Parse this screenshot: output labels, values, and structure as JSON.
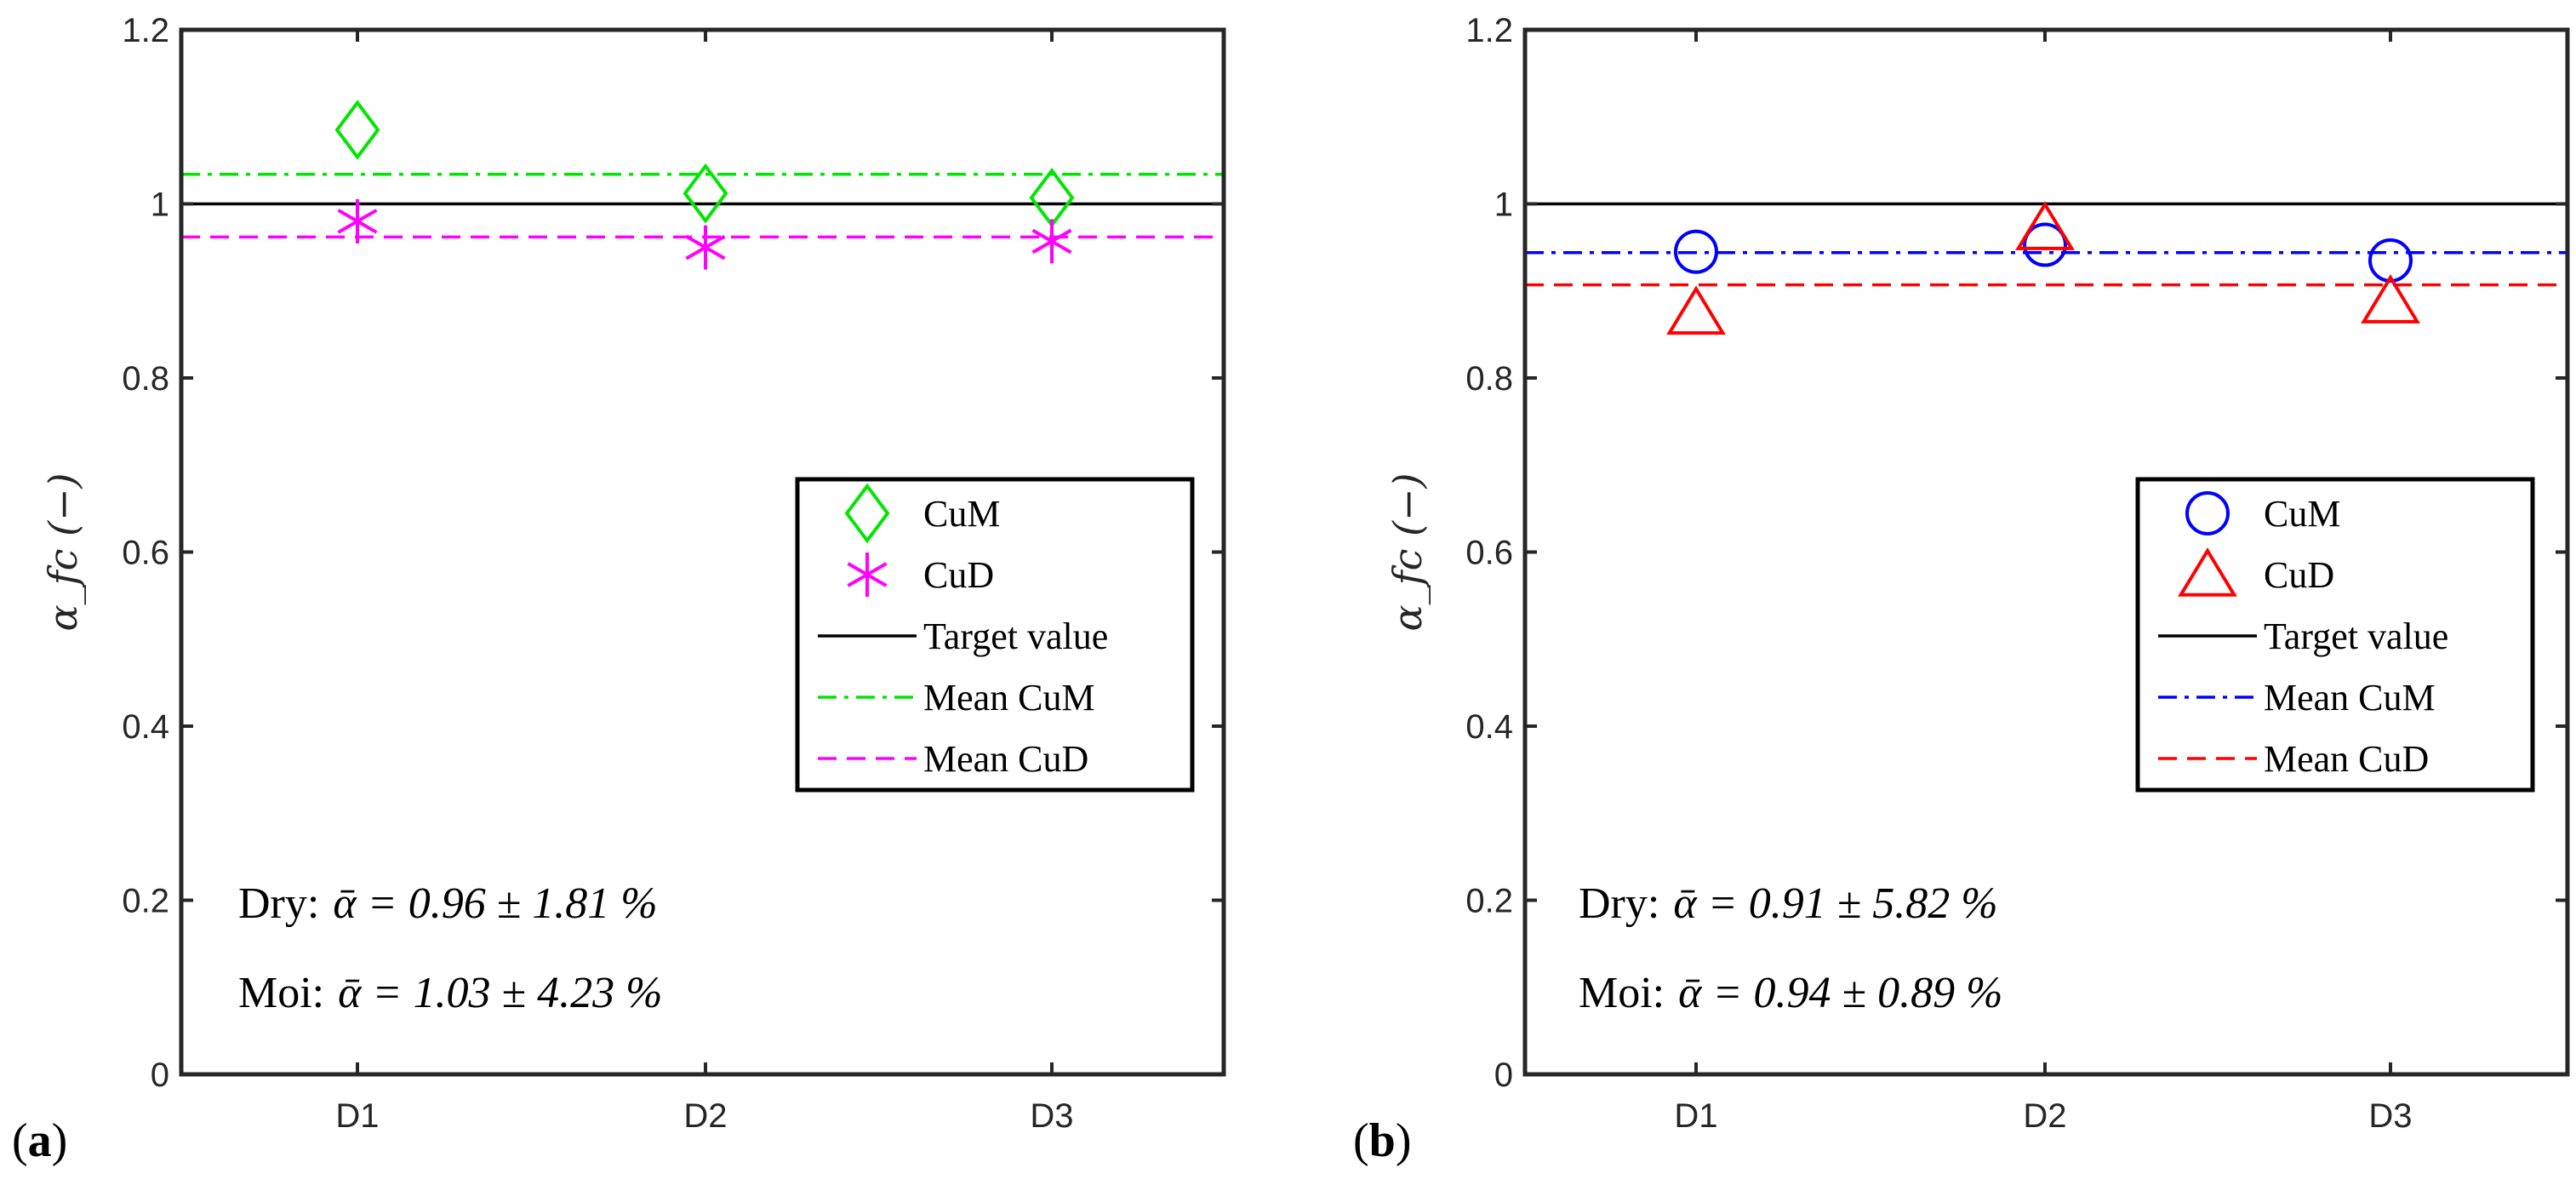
{
  "chart_data": [
    {
      "panel_label": "(a)",
      "type": "scatter",
      "categories": [
        "D1",
        "D2",
        "D3"
      ],
      "ylabel": "α_fc (−)",
      "ylim": [
        0,
        1.2
      ],
      "yticks": [
        "0",
        "0.2",
        "0.4",
        "0.6",
        "0.8",
        "1",
        "1.2"
      ],
      "grid": false,
      "legend_position": "center-right",
      "series": [
        {
          "name": "CuM",
          "values": [
            1.085,
            1.012,
            1.007
          ],
          "marker": "diamond",
          "color": "#00e600"
        },
        {
          "name": "CuD",
          "values": [
            0.98,
            0.95,
            0.957
          ],
          "marker": "asterisk",
          "color": "#ff00ff"
        }
      ],
      "lines": [
        {
          "name": "Target value",
          "value": 1.0,
          "style": "solid",
          "color": "#000000"
        },
        {
          "name": "Mean CuM",
          "value": 1.034,
          "style": "dashdot",
          "color": "#00e600"
        },
        {
          "name": "Mean CuD",
          "value": 0.962,
          "style": "dashed",
          "color": "#ff00ff"
        }
      ],
      "annotations": [
        {
          "prefix": "Dry:",
          "expr": "ᾱ = 0.96 ± 1.81 %"
        },
        {
          "prefix": "Moi:",
          "expr": "ᾱ = 1.03 ± 4.23 %"
        }
      ]
    },
    {
      "panel_label": "(b)",
      "type": "scatter",
      "categories": [
        "D1",
        "D2",
        "D3"
      ],
      "ylabel": "α_fc (−)",
      "ylim": [
        0,
        1.2
      ],
      "yticks": [
        "0",
        "0.2",
        "0.4",
        "0.6",
        "0.8",
        "1",
        "1.2"
      ],
      "grid": false,
      "legend_position": "center-right",
      "series": [
        {
          "name": "CuM",
          "values": [
            0.945,
            0.953,
            0.935
          ],
          "marker": "circle",
          "color": "#0000ff"
        },
        {
          "name": "CuD",
          "values": [
            0.875,
            0.972,
            0.888
          ],
          "marker": "triangle",
          "color": "#ff0000"
        }
      ],
      "lines": [
        {
          "name": "Target value",
          "value": 1.0,
          "style": "solid",
          "color": "#000000"
        },
        {
          "name": "Mean CuM",
          "value": 0.944,
          "style": "dashdot",
          "color": "#0000ff"
        },
        {
          "name": "Mean CuD",
          "value": 0.907,
          "style": "dashed",
          "color": "#ff0000"
        }
      ],
      "annotations": [
        {
          "prefix": "Dry:",
          "expr": "ᾱ = 0.91 ± 5.82 %"
        },
        {
          "prefix": "Moi:",
          "expr": "ᾱ = 0.94 ± 0.89 %"
        }
      ]
    }
  ]
}
